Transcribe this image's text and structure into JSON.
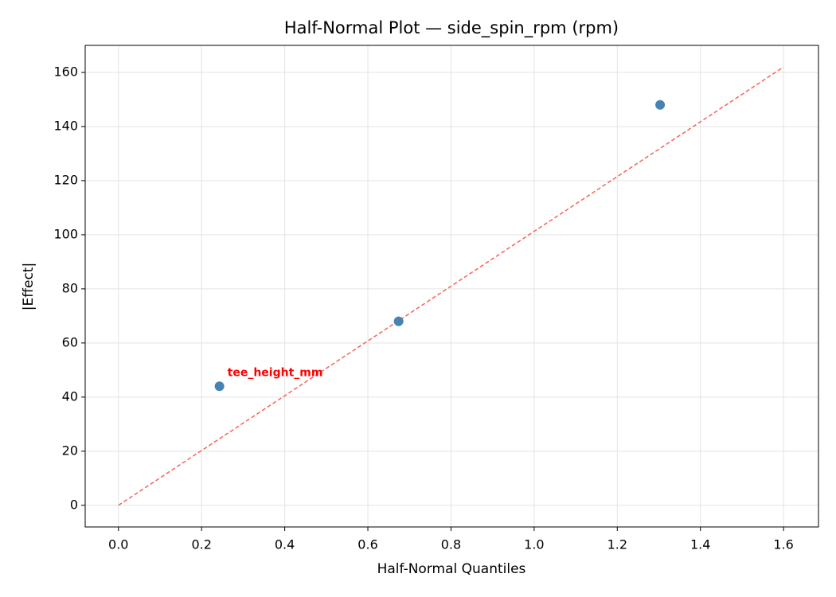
{
  "chart_data": {
    "type": "scatter",
    "title": "Half-Normal Plot — side_spin_rpm (rpm)",
    "x_label": "Half-Normal Quantiles",
    "y_label": "|Effect|",
    "x": [
      0.243,
      0.674,
      1.303
    ],
    "values": [
      44,
      68,
      148
    ],
    "color": "#4682b4",
    "reference_line": {
      "x": [
        0,
        1.6
      ],
      "values": [
        0,
        162
      ],
      "color": "#f4645a",
      "dashed": true
    },
    "annotation": "tee_height_mm",
    "annotation_color": "#ff0000",
    "xlim": [
      -0.08,
      1.684
    ],
    "ylim": [
      -8,
      170
    ],
    "xticks": [
      {
        "value": 0,
        "label": "0.0"
      },
      0.2,
      0.4,
      0.6,
      0.8,
      {
        "value": 1,
        "label": "1.0"
      },
      1.2,
      1.4,
      1.6
    ],
    "yticks": [
      0,
      20,
      40,
      60,
      80,
      100,
      120,
      140,
      160
    ],
    "grid": true
  }
}
